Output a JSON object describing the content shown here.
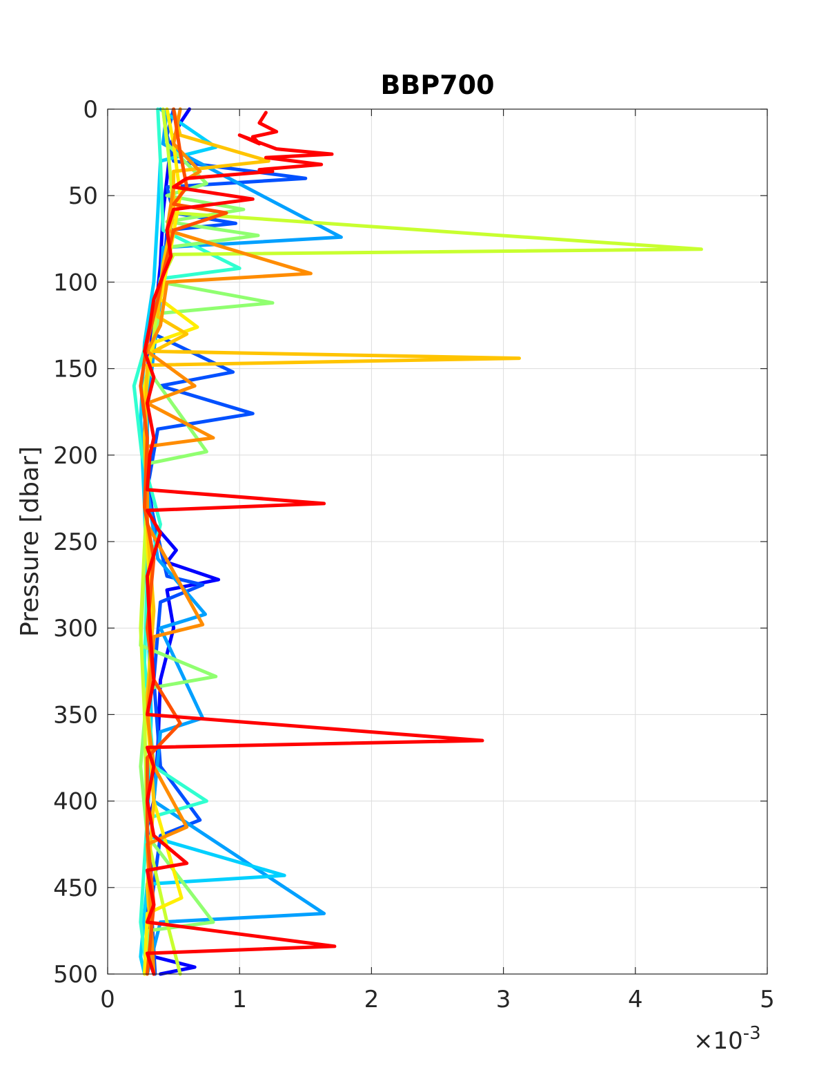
{
  "chart_data": {
    "type": "line",
    "title": "BBP700",
    "xlabel": "",
    "ylabel": "Pressure [dbar]",
    "x_exponent_label": "×10",
    "x_exponent_power": "-3",
    "xlim": [
      0,
      5
    ],
    "ylim": [
      0,
      500
    ],
    "y_reversed": true,
    "grid": true,
    "xticks": [
      "0",
      "1",
      "2",
      "3",
      "4",
      "5"
    ],
    "yticks": [
      "0",
      "50",
      "100",
      "150",
      "200",
      "250",
      "300",
      "350",
      "400",
      "450",
      "500"
    ],
    "spike_note": "x values in units of 10^-3",
    "series": [
      {
        "color": "#0000ff",
        "points": [
          [
            0.62,
            0
          ],
          [
            0.55,
            8
          ],
          [
            0.48,
            20
          ],
          [
            0.45,
            40
          ],
          [
            0.42,
            60
          ],
          [
            0.4,
            90
          ],
          [
            0.36,
            120
          ],
          [
            0.3,
            150
          ],
          [
            0.28,
            185
          ],
          [
            0.3,
            210
          ],
          [
            0.35,
            240
          ],
          [
            0.52,
            255
          ],
          [
            0.45,
            262
          ],
          [
            0.84,
            272
          ],
          [
            0.45,
            278
          ],
          [
            0.5,
            300
          ],
          [
            0.4,
            330
          ],
          [
            0.38,
            370
          ],
          [
            0.35,
            400
          ],
          [
            0.3,
            415
          ],
          [
            0.33,
            440
          ],
          [
            0.3,
            470
          ],
          [
            0.35,
            490
          ],
          [
            0.66,
            496
          ],
          [
            0.4,
            500
          ]
        ]
      },
      {
        "color": "#0050ff",
        "points": [
          [
            0.5,
            0
          ],
          [
            0.45,
            15
          ],
          [
            0.5,
            30
          ],
          [
            1.5,
            40
          ],
          [
            0.45,
            45
          ],
          [
            0.5,
            60
          ],
          [
            0.97,
            66
          ],
          [
            0.45,
            70
          ],
          [
            0.42,
            100
          ],
          [
            0.35,
            130
          ],
          [
            0.95,
            152
          ],
          [
            0.4,
            160
          ],
          [
            1.1,
            176
          ],
          [
            0.38,
            185
          ],
          [
            0.3,
            220
          ],
          [
            0.45,
            270
          ],
          [
            0.72,
            275
          ],
          [
            0.4,
            285
          ],
          [
            0.35,
            330
          ],
          [
            0.4,
            380
          ],
          [
            0.7,
            411
          ],
          [
            0.4,
            420
          ],
          [
            0.33,
            460
          ],
          [
            0.36,
            500
          ]
        ]
      },
      {
        "color": "#00a0ff",
        "points": [
          [
            0.45,
            0
          ],
          [
            0.42,
            20
          ],
          [
            1.77,
            74
          ],
          [
            0.42,
            80
          ],
          [
            0.4,
            110
          ],
          [
            0.35,
            140
          ],
          [
            0.3,
            175
          ],
          [
            0.3,
            220
          ],
          [
            0.38,
            260
          ],
          [
            0.74,
            292
          ],
          [
            0.4,
            300
          ],
          [
            0.72,
            352
          ],
          [
            0.4,
            360
          ],
          [
            0.35,
            400
          ],
          [
            1.64,
            465
          ],
          [
            0.4,
            470
          ],
          [
            0.3,
            500
          ]
        ]
      },
      {
        "color": "#00d0ff",
        "points": [
          [
            0.4,
            0
          ],
          [
            0.82,
            22
          ],
          [
            0.4,
            30
          ],
          [
            0.38,
            60
          ],
          [
            0.35,
            100
          ],
          [
            0.28,
            135
          ],
          [
            0.25,
            180
          ],
          [
            0.28,
            230
          ],
          [
            0.3,
            280
          ],
          [
            0.33,
            350
          ],
          [
            0.3,
            420
          ],
          [
            1.34,
            443
          ],
          [
            0.3,
            448
          ],
          [
            0.25,
            490
          ],
          [
            0.28,
            500
          ]
        ]
      },
      {
        "color": "#30ffd0",
        "points": [
          [
            0.38,
            0
          ],
          [
            0.4,
            30
          ],
          [
            0.42,
            70
          ],
          [
            1.0,
            92
          ],
          [
            0.4,
            98
          ],
          [
            0.35,
            120
          ],
          [
            0.2,
            160
          ],
          [
            0.26,
            200
          ],
          [
            0.4,
            240
          ],
          [
            0.3,
            270
          ],
          [
            0.28,
            320
          ],
          [
            0.35,
            380
          ],
          [
            0.75,
            400
          ],
          [
            0.3,
            410
          ],
          [
            0.25,
            470
          ],
          [
            0.3,
            500
          ]
        ]
      },
      {
        "color": "#90ff70",
        "points": [
          [
            0.42,
            0
          ],
          [
            0.45,
            20
          ],
          [
            0.75,
            43
          ],
          [
            0.45,
            50
          ],
          [
            1.03,
            58
          ],
          [
            0.45,
            65
          ],
          [
            1.14,
            73
          ],
          [
            0.45,
            80
          ],
          [
            0.4,
            100
          ],
          [
            1.25,
            112
          ],
          [
            0.4,
            118
          ],
          [
            0.3,
            150
          ],
          [
            0.75,
            198
          ],
          [
            0.3,
            205
          ],
          [
            0.28,
            260
          ],
          [
            0.25,
            310
          ],
          [
            0.82,
            328
          ],
          [
            0.3,
            335
          ],
          [
            0.25,
            380
          ],
          [
            0.3,
            420
          ],
          [
            0.8,
            470
          ],
          [
            0.3,
            475
          ],
          [
            0.3,
            500
          ]
        ]
      },
      {
        "color": "#c8ff30",
        "points": [
          [
            0.42,
            0
          ],
          [
            0.46,
            25
          ],
          [
            0.5,
            60
          ],
          [
            4.5,
            81
          ],
          [
            0.5,
            84
          ],
          [
            0.4,
            100
          ],
          [
            0.35,
            130
          ],
          [
            0.28,
            170
          ],
          [
            0.3,
            220
          ],
          [
            0.25,
            300
          ],
          [
            0.28,
            350
          ],
          [
            0.3,
            420
          ],
          [
            0.45,
            470
          ],
          [
            0.55,
            500
          ]
        ]
      },
      {
        "color": "#ffee00",
        "points": [
          [
            0.45,
            0
          ],
          [
            0.5,
            20
          ],
          [
            0.55,
            50
          ],
          [
            0.48,
            80
          ],
          [
            0.4,
            110
          ],
          [
            0.68,
            126
          ],
          [
            0.35,
            135
          ],
          [
            0.28,
            160
          ],
          [
            0.3,
            200
          ],
          [
            0.3,
            250
          ],
          [
            0.33,
            300
          ],
          [
            0.3,
            350
          ],
          [
            0.35,
            400
          ],
          [
            0.56,
            456
          ],
          [
            0.3,
            465
          ],
          [
            0.28,
            500
          ]
        ]
      },
      {
        "color": "#ffc400",
        "points": [
          [
            0.5,
            0
          ],
          [
            0.55,
            15
          ],
          [
            1.22,
            30
          ],
          [
            0.5,
            36
          ],
          [
            0.5,
            60
          ],
          [
            0.42,
            90
          ],
          [
            0.38,
            120
          ],
          [
            0.6,
            130
          ],
          [
            0.35,
            140
          ],
          [
            3.12,
            144
          ],
          [
            0.3,
            148
          ],
          [
            0.28,
            190
          ],
          [
            0.3,
            240
          ],
          [
            0.35,
            290
          ],
          [
            0.3,
            340
          ],
          [
            0.35,
            400
          ],
          [
            0.3,
            450
          ],
          [
            0.35,
            500
          ]
        ]
      },
      {
        "color": "#ff8c00",
        "points": [
          [
            0.55,
            0
          ],
          [
            0.5,
            20
          ],
          [
            0.7,
            36
          ],
          [
            0.5,
            45
          ],
          [
            0.45,
            70
          ],
          [
            1.54,
            95
          ],
          [
            0.45,
            100
          ],
          [
            0.4,
            125
          ],
          [
            0.3,
            140
          ],
          [
            0.66,
            160
          ],
          [
            0.3,
            170
          ],
          [
            0.8,
            190
          ],
          [
            0.3,
            195
          ],
          [
            0.3,
            240
          ],
          [
            0.72,
            298
          ],
          [
            0.35,
            305
          ],
          [
            0.3,
            350
          ],
          [
            0.35,
            380
          ],
          [
            0.6,
            415
          ],
          [
            0.3,
            425
          ],
          [
            0.35,
            500
          ]
        ]
      },
      {
        "color": "#ff5000",
        "points": [
          [
            0.5,
            0
          ],
          [
            0.55,
            25
          ],
          [
            0.6,
            45
          ],
          [
            0.5,
            55
          ],
          [
            0.9,
            60
          ],
          [
            0.5,
            70
          ],
          [
            0.42,
            95
          ],
          [
            0.38,
            110
          ],
          [
            0.3,
            135
          ],
          [
            0.25,
            160
          ],
          [
            0.3,
            190
          ],
          [
            0.28,
            230
          ],
          [
            0.35,
            260
          ],
          [
            0.3,
            300
          ],
          [
            0.35,
            330
          ],
          [
            0.55,
            355
          ],
          [
            0.3,
            375
          ],
          [
            0.3,
            420
          ],
          [
            0.35,
            460
          ],
          [
            0.3,
            500
          ]
        ]
      },
      {
        "color": "#ff0000",
        "points": [
          [
            1.2,
            2
          ],
          [
            1.15,
            8
          ],
          [
            1.28,
            13
          ],
          [
            1.1,
            16
          ],
          [
            1.15,
            20
          ],
          [
            1.0,
            15
          ],
          [
            1.28,
            23
          ],
          [
            1.7,
            26
          ],
          [
            1.2,
            28
          ],
          [
            1.62,
            32
          ],
          [
            1.15,
            35
          ],
          [
            1.25,
            36
          ],
          [
            0.6,
            40
          ],
          [
            0.5,
            45
          ],
          [
            1.1,
            52
          ],
          [
            0.5,
            58
          ],
          [
            0.45,
            70
          ],
          [
            0.48,
            85
          ],
          [
            0.4,
            100
          ],
          [
            0.35,
            110
          ],
          [
            0.32,
            125
          ],
          [
            0.28,
            140
          ],
          [
            0.35,
            155
          ],
          [
            0.3,
            170
          ],
          [
            0.35,
            190
          ],
          [
            0.32,
            200
          ],
          [
            0.3,
            220
          ],
          [
            1.64,
            228
          ],
          [
            0.3,
            232
          ],
          [
            0.4,
            245
          ],
          [
            0.3,
            270
          ],
          [
            0.32,
            300
          ],
          [
            0.35,
            330
          ],
          [
            0.3,
            350
          ],
          [
            2.84,
            365
          ],
          [
            0.3,
            369
          ],
          [
            0.35,
            380
          ],
          [
            0.3,
            400
          ],
          [
            0.35,
            420
          ],
          [
            0.6,
            436
          ],
          [
            0.3,
            440
          ],
          [
            0.35,
            460
          ],
          [
            0.3,
            470
          ],
          [
            1.72,
            484
          ],
          [
            0.3,
            488
          ],
          [
            0.35,
            500
          ]
        ]
      }
    ]
  }
}
